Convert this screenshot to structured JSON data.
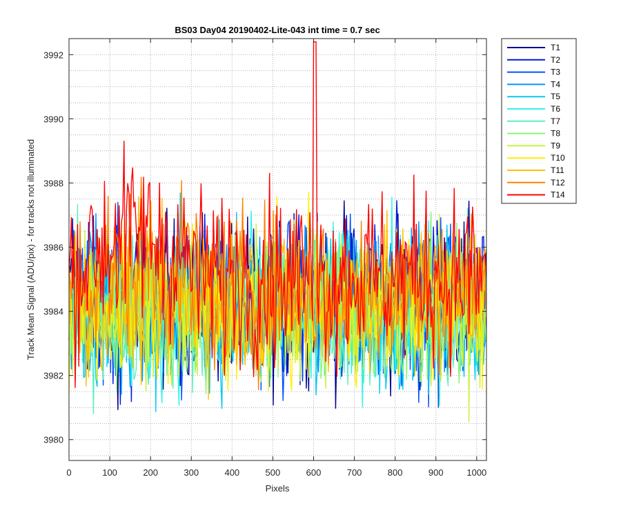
{
  "chart_data": {
    "type": "line",
    "title": "BS03 Day04 20190402-Lite-043 int time = 0.7 sec",
    "xlabel": "Pixels",
    "ylabel": "Track Mean Signal (ADU/pix) - for tracks not illuminated",
    "xlim": [
      0,
      1024
    ],
    "ylim": [
      3979.35,
      3992.5
    ],
    "xticks": [
      0,
      100,
      200,
      300,
      400,
      500,
      600,
      700,
      800,
      900,
      1000
    ],
    "yticks": [
      3980,
      3982,
      3984,
      3986,
      3988,
      3990,
      3992
    ],
    "grid": "major and minor, dotted",
    "legend_position": "outside-right",
    "series": [
      {
        "name": "T1",
        "color": "#00008f",
        "mean": 3984.3,
        "noise": 1.3
      },
      {
        "name": "T2",
        "color": "#0018d6",
        "mean": 3984.3,
        "noise": 1.3
      },
      {
        "name": "T3",
        "color": "#0050ff",
        "mean": 3984.2,
        "noise": 1.3
      },
      {
        "name": "T4",
        "color": "#0094ff",
        "mean": 3984.2,
        "noise": 1.3
      },
      {
        "name": "T5",
        "color": "#08c7f5",
        "mean": 3984.1,
        "noise": 1.25
      },
      {
        "name": "T6",
        "color": "#2ef4e9",
        "mean": 3984.1,
        "noise": 1.25
      },
      {
        "name": "T7",
        "color": "#5cf0c0",
        "mean": 3984.0,
        "noise": 1.2
      },
      {
        "name": "T8",
        "color": "#8af576",
        "mean": 3984.0,
        "noise": 1.2
      },
      {
        "name": "T9",
        "color": "#c8f13a",
        "mean": 3984.1,
        "noise": 1.2
      },
      {
        "name": "T10",
        "color": "#fff000",
        "mean": 3984.2,
        "noise": 1.2
      },
      {
        "name": "T11",
        "color": "#ffbf00",
        "mean": 3984.4,
        "noise": 1.2
      },
      {
        "name": "T12",
        "color": "#ff8200",
        "mean": 3984.7,
        "noise": 1.25
      },
      {
        "name": "T14",
        "color": "#ff0000",
        "mean": 3985.1,
        "noise": 1.35
      }
    ]
  }
}
